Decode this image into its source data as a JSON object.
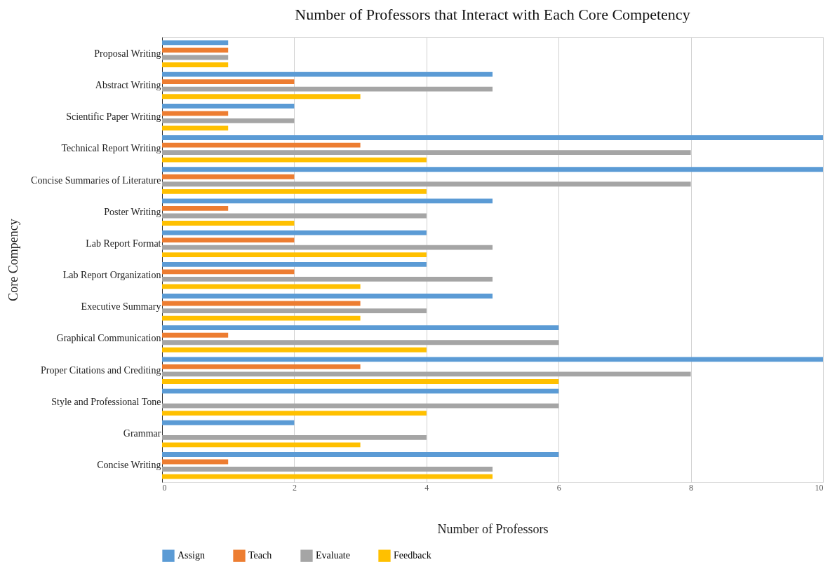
{
  "chart_data": {
    "type": "bar",
    "orientation": "horizontal",
    "title": "Number of Professors that Interact with Each Core Competency",
    "xlabel": "Number of Professors",
    "ylabel": "Core Compency",
    "categories": [
      "Proposal Writing",
      "Abstract Writing",
      "Scientific Paper Writing",
      "Technical Report Writing",
      "Concise Summaries of Literature",
      "Poster Writing",
      "Lab Report Format",
      "Lab Report Organization",
      "Executive Summary",
      "Graphical Communication",
      "Proper Citations and Crediting",
      "Style and Professional Tone",
      "Grammar",
      "Concise Writing"
    ],
    "series": [
      {
        "name": "Assign",
        "color": "#5b9bd5",
        "values": [
          1,
          5,
          2,
          10,
          10,
          5,
          4,
          4,
          5,
          6,
          10,
          6,
          2,
          6
        ]
      },
      {
        "name": "Teach",
        "color": "#ed7d31",
        "values": [
          1,
          2,
          1,
          3,
          2,
          1,
          2,
          2,
          3,
          1,
          3,
          0,
          0,
          1
        ]
      },
      {
        "name": "Evaluate",
        "color": "#a5a5a5",
        "values": [
          1,
          5,
          2,
          8,
          8,
          4,
          5,
          5,
          4,
          6,
          8,
          6,
          4,
          5
        ]
      },
      {
        "name": "Feedback",
        "color": "#ffc000",
        "values": [
          1,
          3,
          1,
          4,
          4,
          2,
          4,
          3,
          3,
          4,
          6,
          4,
          3,
          5
        ]
      }
    ],
    "xlim": [
      0,
      10
    ],
    "xticks": [
      0,
      2,
      4,
      6,
      8,
      10
    ],
    "grid": "x",
    "legend": "bottom"
  }
}
